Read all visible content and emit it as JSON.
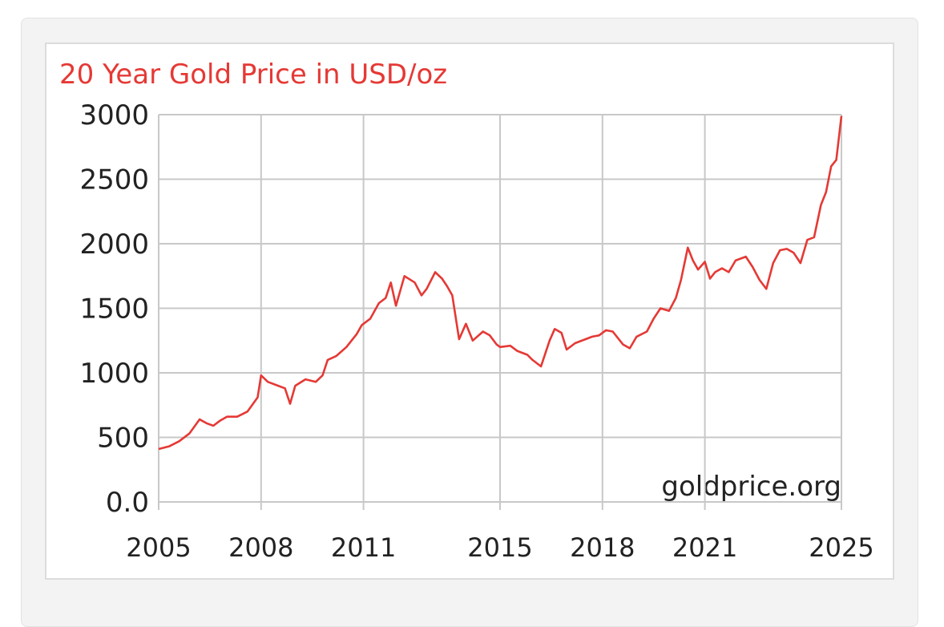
{
  "chart_data": {
    "type": "line",
    "title": "20 Year Gold Price in USD/oz",
    "watermark": "goldprice.org",
    "ytick_labels": [
      "0.0",
      "500",
      "1000",
      "1500",
      "2000",
      "2500",
      "3000"
    ],
    "xtick_labels": [
      "2005",
      "2008",
      "2011",
      "2015",
      "2018",
      "2021",
      "2025"
    ],
    "xtick_values": [
      2005,
      2008,
      2011,
      2015,
      2018,
      2021,
      2025
    ],
    "xlim": [
      2005,
      2025
    ],
    "ylim": [
      0,
      3000
    ],
    "grid": true,
    "colors": {
      "line": "#e53935",
      "title": "#e53935",
      "grid": "#c8c8c8",
      "text": "#222222"
    },
    "series": [
      {
        "x": [
          2005.0,
          2005.3,
          2005.6,
          2005.9,
          2006.2,
          2006.4,
          2006.6,
          2006.8,
          2007.0,
          2007.3,
          2007.6,
          2007.9,
          2008.0,
          2008.2,
          2008.5,
          2008.7,
          2008.85,
          2009.0,
          2009.3,
          2009.6,
          2009.8,
          2009.95,
          2010.2,
          2010.5,
          2010.8,
          2010.95,
          2011.2,
          2011.45,
          2011.65,
          2011.8,
          2011.95,
          2012.2,
          2012.5,
          2012.7,
          2012.85,
          2013.1,
          2013.3,
          2013.45,
          2013.6,
          2013.8,
          2014.0,
          2014.2,
          2014.5,
          2014.7,
          2014.9,
          2015.0,
          2015.3,
          2015.5,
          2015.8,
          2015.95,
          2016.2,
          2016.45,
          2016.6,
          2016.8,
          2016.95,
          2017.2,
          2017.5,
          2017.7,
          2017.9,
          2018.1,
          2018.3,
          2018.6,
          2018.8,
          2019.0,
          2019.3,
          2019.5,
          2019.7,
          2019.95,
          2020.15,
          2020.3,
          2020.5,
          2020.65,
          2020.8,
          2021.0,
          2021.15,
          2021.3,
          2021.5,
          2021.7,
          2021.9,
          2022.2,
          2022.4,
          2022.6,
          2022.8,
          2023.0,
          2023.2,
          2023.4,
          2023.6,
          2023.8,
          2024.0,
          2024.2,
          2024.4,
          2024.55,
          2024.7,
          2024.85,
          2025.0
        ],
        "y": [
          410,
          430,
          470,
          530,
          640,
          610,
          590,
          630,
          660,
          660,
          700,
          810,
          980,
          930,
          900,
          880,
          760,
          900,
          950,
          930,
          980,
          1100,
          1130,
          1200,
          1300,
          1370,
          1420,
          1540,
          1580,
          1700,
          1520,
          1750,
          1700,
          1600,
          1650,
          1780,
          1730,
          1670,
          1600,
          1260,
          1380,
          1250,
          1320,
          1290,
          1220,
          1200,
          1210,
          1170,
          1140,
          1100,
          1050,
          1250,
          1340,
          1310,
          1180,
          1230,
          1260,
          1280,
          1290,
          1330,
          1320,
          1220,
          1190,
          1280,
          1320,
          1420,
          1500,
          1480,
          1580,
          1720,
          1970,
          1870,
          1800,
          1860,
          1730,
          1780,
          1810,
          1780,
          1870,
          1900,
          1820,
          1720,
          1650,
          1850,
          1950,
          1960,
          1930,
          1850,
          2030,
          2050,
          2300,
          2400,
          2600,
          2650,
          2990
        ]
      }
    ]
  }
}
